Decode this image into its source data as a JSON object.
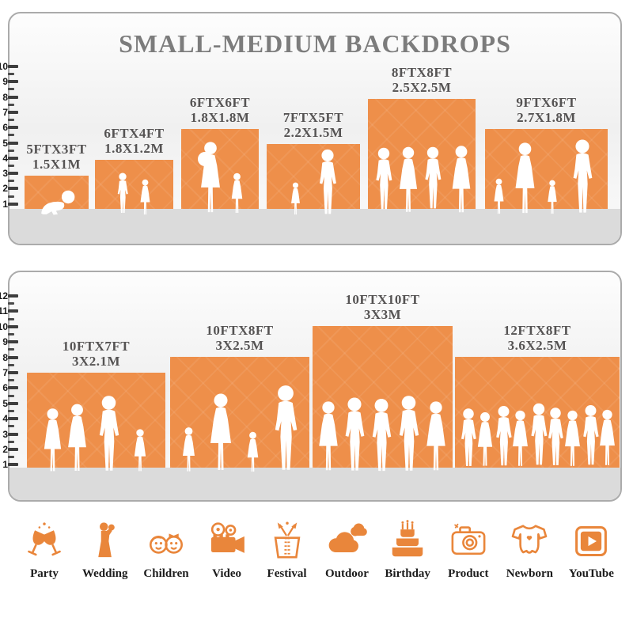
{
  "title": "SMALL-MEDIUM BACKDROPS",
  "panels": [
    {
      "ruler": [
        10,
        9,
        8,
        7,
        6,
        5,
        4,
        3,
        2,
        1
      ],
      "backdrops": [
        {
          "ft": "5FTX3FT",
          "m": "1.5X1M"
        },
        {
          "ft": "6FTX4FT",
          "m": "1.8X1.2M"
        },
        {
          "ft": "6FTX6FT",
          "m": "1.8X1.8M"
        },
        {
          "ft": "7FTX5FT",
          "m": "2.2X1.5M"
        },
        {
          "ft": "8FTX8FT",
          "m": "2.5X2.5M"
        },
        {
          "ft": "9FTX6FT",
          "m": "2.7X1.8M"
        }
      ]
    },
    {
      "ruler": [
        12,
        11,
        10,
        9,
        8,
        7,
        6,
        5,
        4,
        3,
        2,
        1
      ],
      "backdrops": [
        {
          "ft": "10FTX7FT",
          "m": "3X2.1M"
        },
        {
          "ft": "10FTX8FT",
          "m": "3X2.5M"
        },
        {
          "ft": "10FTX10FT",
          "m": "3X3M"
        },
        {
          "ft": "12FTX8FT",
          "m": "3.6X2.5M"
        }
      ]
    }
  ],
  "categories": [
    {
      "label": "Party"
    },
    {
      "label": "Wedding"
    },
    {
      "label": "Children"
    },
    {
      "label": "Video"
    },
    {
      "label": "Festival"
    },
    {
      "label": "Outdoor"
    },
    {
      "label": "Birthday"
    },
    {
      "label": "Product"
    },
    {
      "label": "Newborn"
    },
    {
      "label": "YouTube"
    }
  ],
  "colors": {
    "backdrop_orange": "#EE8F4A",
    "icon_orange": "#E9863B",
    "floor_gray": "#DBDBDB",
    "title_gray": "#7C7C7C",
    "label_gray": "#555353"
  }
}
